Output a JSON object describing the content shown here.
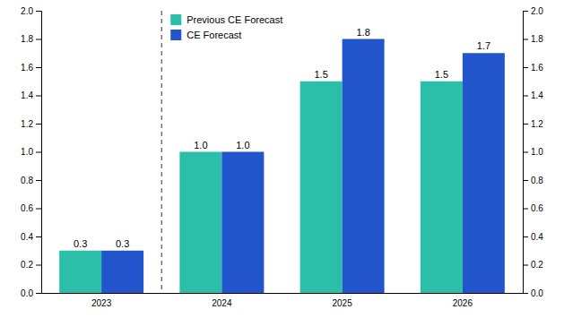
{
  "chart_data": {
    "type": "bar",
    "categories": [
      "2023",
      "2024",
      "2025",
      "2026"
    ],
    "series": [
      {
        "name": "Previous CE Forecast",
        "color": "#2bbfaa",
        "values": [
          0.3,
          1.0,
          1.5,
          1.5
        ],
        "value_labels": [
          "0.3",
          "1.0",
          "1.5",
          "1.5"
        ]
      },
      {
        "name": "CE Forecast",
        "color": "#2255cc",
        "values": [
          0.3,
          1.0,
          1.8,
          1.7
        ],
        "value_labels": [
          "0.3",
          "1.0",
          "1.8",
          "1.7"
        ]
      }
    ],
    "ylim": [
      0.0,
      2.0
    ],
    "yticks": [
      {
        "value": 0.0,
        "label": "0.0"
      },
      0.2,
      0.4,
      0.6,
      0.8,
      {
        "value": 1.0,
        "label": "1.0"
      },
      1.2,
      1.4,
      1.6,
      1.8,
      {
        "value": 2.0,
        "label": "2.0"
      }
    ],
    "y2lim": [
      0.0,
      2.0
    ],
    "y2ticks": [
      {
        "value": 0.0,
        "label": "0.0"
      },
      0.2,
      0.4,
      0.6,
      0.8,
      {
        "value": 1.0,
        "label": "1.0"
      },
      1.2,
      1.4,
      1.6,
      1.8,
      {
        "value": 2.0,
        "label": "2.0"
      }
    ],
    "grid": false,
    "legend": "upper left",
    "data_labels": true
  }
}
